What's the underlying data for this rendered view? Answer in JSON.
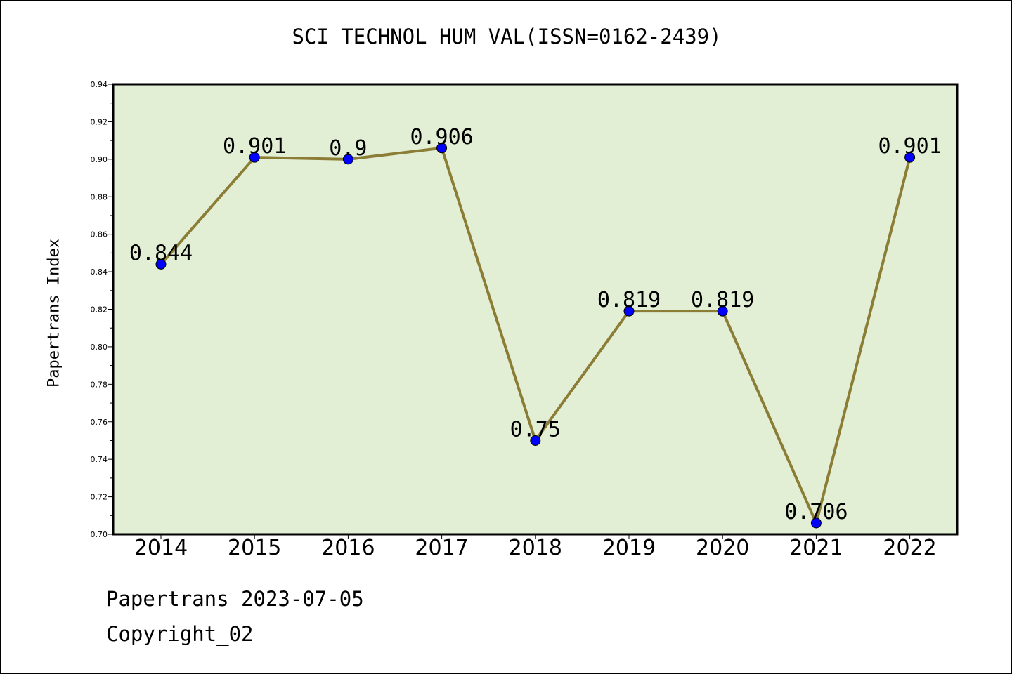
{
  "chart_data": {
    "type": "line",
    "title": "SCI TECHNOL HUM VAL(ISSN=0162-2439)",
    "ylabel": "Papertrans Index",
    "xlabel": "",
    "categories": [
      "2014",
      "2015",
      "2016",
      "2017",
      "2018",
      "2019",
      "2020",
      "2021",
      "2022"
    ],
    "series": [
      {
        "values": [
          0.844,
          0.901,
          0.9,
          0.906,
          0.75,
          0.819,
          0.819,
          0.706,
          0.901
        ]
      }
    ],
    "data_labels": [
      "0.844",
      "0.901",
      "0.9",
      "0.906",
      "0.75",
      "0.819",
      "0.819",
      "0.706",
      "0.901"
    ],
    "ylim": [
      0.7,
      0.94
    ],
    "yticks": [
      "0.70",
      "0.72",
      "0.74",
      "0.76",
      "0.78",
      "0.80",
      "0.82",
      "0.84",
      "0.86",
      "0.88",
      "0.90",
      "0.92",
      "0.94"
    ],
    "grid": false,
    "colors": {
      "plot_background": "#e2efd5",
      "line": "#8b7d35",
      "marker": "#0000ff"
    }
  },
  "footer": {
    "line1": "Papertrans 2023-07-05",
    "line2": "Copyright_02"
  }
}
